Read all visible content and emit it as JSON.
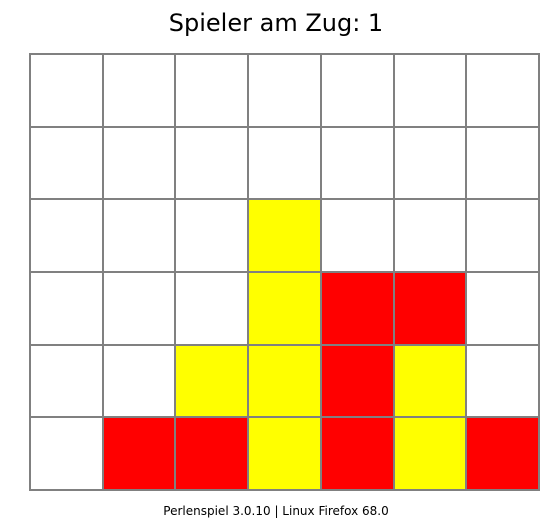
{
  "status": {
    "text": "Spieler am Zug: 1"
  },
  "board": {
    "columns": 7,
    "rows": 6,
    "colors": {
      "empty": "#ffffff",
      "player1": "#ffff00",
      "player2": "#ff0000",
      "gridline": "#808080"
    },
    "cells": [
      [
        0,
        0,
        0,
        0,
        0,
        0,
        0
      ],
      [
        0,
        0,
        0,
        0,
        0,
        0,
        0
      ],
      [
        0,
        0,
        0,
        1,
        0,
        0,
        0
      ],
      [
        0,
        0,
        0,
        1,
        2,
        2,
        0
      ],
      [
        0,
        0,
        1,
        1,
        2,
        1,
        0
      ],
      [
        0,
        2,
        2,
        1,
        2,
        1,
        2
      ]
    ]
  },
  "footer": {
    "text": "Perlenspiel 3.0.10 | Linux Firefox 68.0"
  }
}
